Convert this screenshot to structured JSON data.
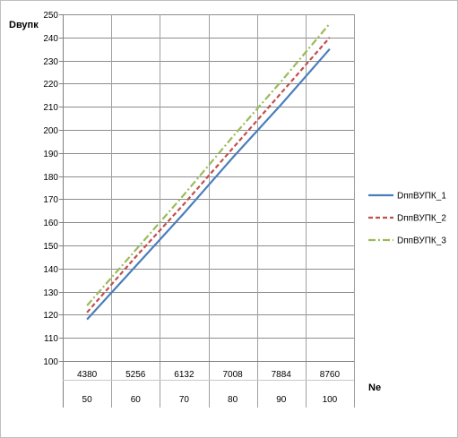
{
  "chart_data": {
    "type": "line",
    "title": "",
    "ylabel": "Dвупк",
    "xlabel": "Ne",
    "ylim": [
      100,
      250
    ],
    "ytick_step": 10,
    "grid": true,
    "legend": "right",
    "categories": [
      "4380",
      "5256",
      "6132",
      "7008",
      "7884",
      "8760"
    ],
    "categories2": [
      "50",
      "60",
      "70",
      "80",
      "90",
      "100"
    ],
    "series": [
      {
        "name": "DппВУПК_1",
        "color": "#4a7ebb",
        "dash": "solid",
        "values": [
          118,
          141,
          164,
          188,
          211,
          235
        ]
      },
      {
        "name": "DппВУПК_2",
        "color": "#c0504d",
        "dash": "dash",
        "values": [
          121,
          145,
          168,
          192,
          216,
          240
        ]
      },
      {
        "name": "DппВУПК_3",
        "color": "#9bbb59",
        "dash": "dash-dot",
        "values": [
          124,
          148,
          172,
          197,
          221,
          246
        ]
      }
    ]
  }
}
